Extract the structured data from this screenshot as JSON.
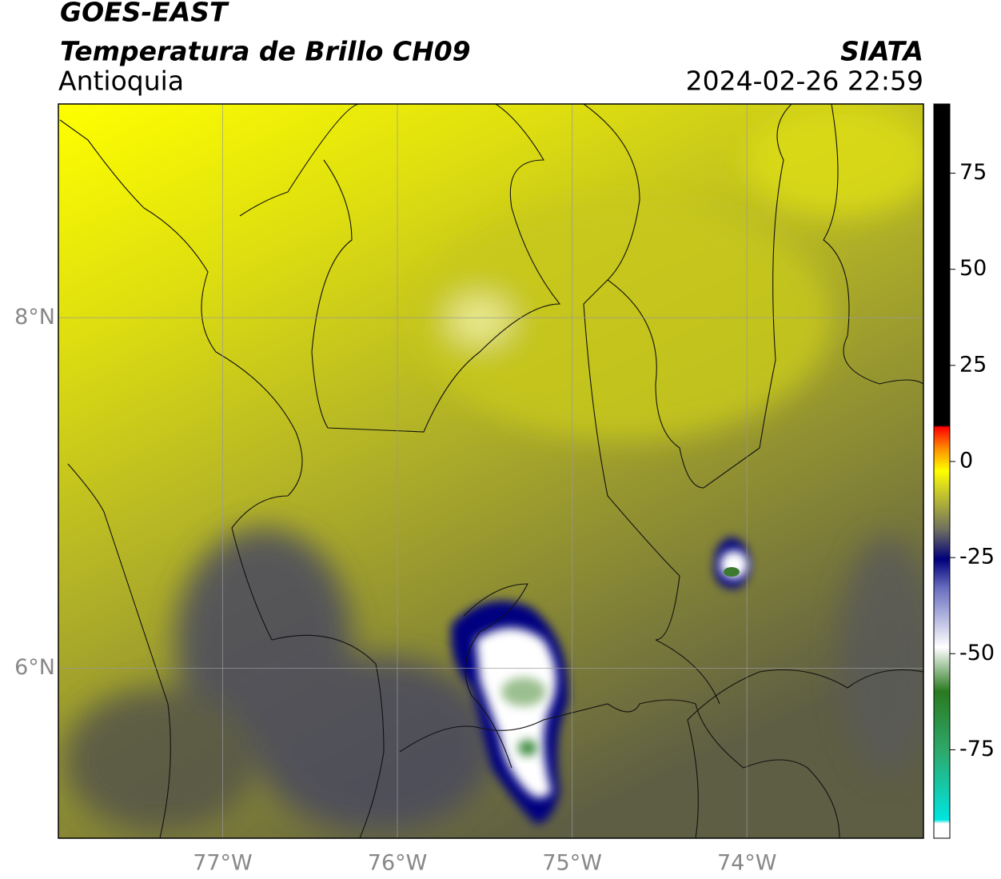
{
  "header": {
    "satellite": "GOES-EAST",
    "product": "Temperatura de Brillo CH09",
    "region": "Antioquia",
    "source": "SIATA",
    "datetime": "2024-02-26 22:59"
  },
  "map": {
    "xlim": [
      -77.94,
      -72.99
    ],
    "ylim": [
      5.03,
      9.22
    ],
    "xticks": [
      {
        "value": -77,
        "label": "77°W"
      },
      {
        "value": -76,
        "label": "76°W"
      },
      {
        "value": -75,
        "label": "75°W"
      },
      {
        "value": -74,
        "label": "74°W"
      }
    ],
    "yticks": [
      {
        "value": 6,
        "label": "6°N"
      },
      {
        "value": 8,
        "label": "8°N"
      }
    ],
    "grid": true
  },
  "colorbar": {
    "lim": [
      -98,
      93
    ],
    "ticks": [
      -75,
      -50,
      -25,
      0,
      25,
      50,
      75
    ]
  }
}
